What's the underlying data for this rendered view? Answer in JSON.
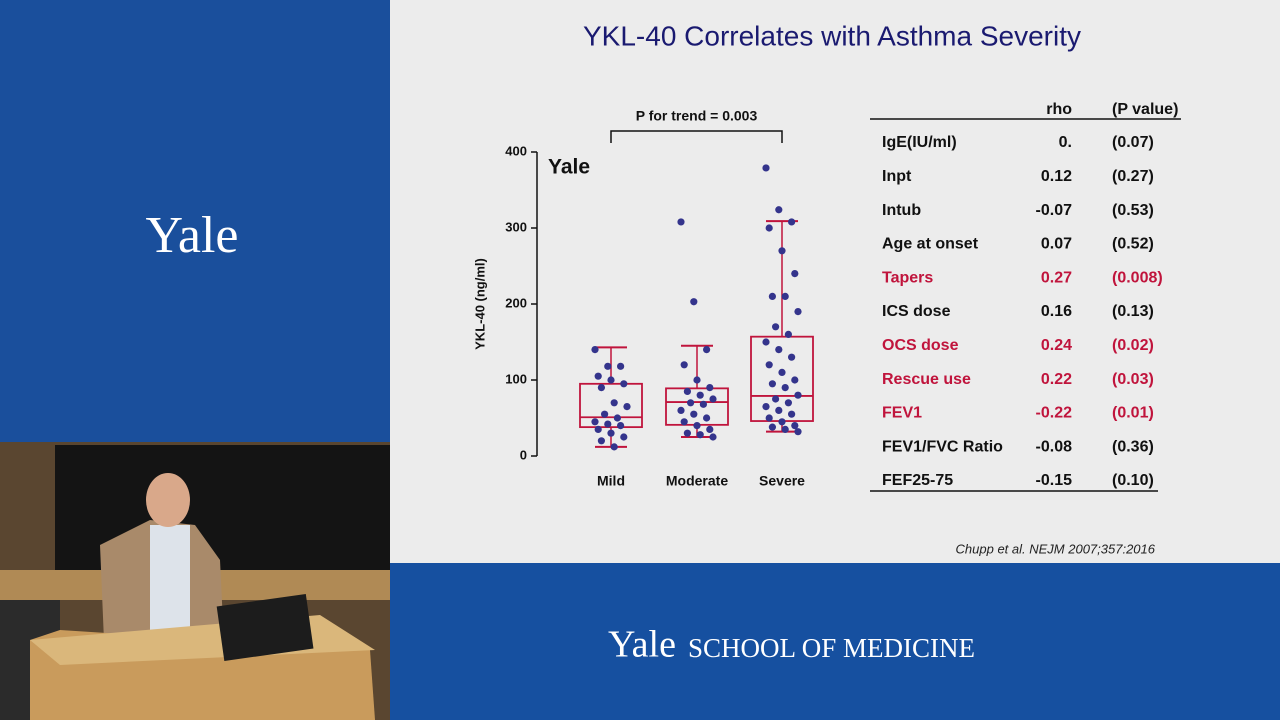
{
  "sidebar": {
    "logo": "Yale"
  },
  "banner": {
    "logo": "Yale",
    "school": "SCHOOL OF MEDICINE"
  },
  "slide": {
    "title": "YKL-40 Correlates with Asthma Severity",
    "citation": "Chupp et al.  NEJM 2007;357:2016"
  },
  "chart_data": {
    "type": "box",
    "ylabel": "YKL-40 (ng/ml)",
    "annotation": "P for trend = 0.003",
    "inset_label": "Yale",
    "categories": [
      "Mild",
      "Moderate",
      "Severe"
    ],
    "boxes": [
      {
        "min": 12,
        "q1": 38,
        "median": 51,
        "q3": 95,
        "max": 143
      },
      {
        "min": 25,
        "q1": 41,
        "median": 71,
        "q3": 89,
        "max": 145
      },
      {
        "min": 32,
        "q1": 46,
        "median": 79,
        "q3": 157,
        "max": 309
      }
    ],
    "points": [
      [
        140,
        118,
        118,
        105,
        100,
        95,
        90,
        70,
        65,
        55,
        50,
        45,
        42,
        40,
        35,
        30,
        25,
        20,
        12
      ],
      [
        308,
        203,
        140,
        120,
        100,
        90,
        85,
        80,
        75,
        70,
        68,
        60,
        55,
        50,
        45,
        40,
        35,
        30,
        28,
        25
      ],
      [
        379,
        324,
        308,
        300,
        270,
        240,
        210,
        210,
        190,
        170,
        160,
        150,
        140,
        130,
        120,
        110,
        100,
        95,
        90,
        80,
        75,
        70,
        65,
        60,
        55,
        50,
        45,
        40,
        38,
        35,
        32
      ]
    ],
    "box_color": "#c0143c",
    "point_color": "#34348c",
    "ylim": [
      0,
      400
    ],
    "yticks": [
      0,
      100,
      200,
      300,
      400
    ]
  },
  "table": {
    "columns": [
      "rho",
      "(P value)"
    ],
    "rows": [
      {
        "label": "IgE(IU/ml)",
        "rho": "0.",
        "p": "(0.07)",
        "highlight": false
      },
      {
        "label": "Inpt",
        "rho": "0.12",
        "p": "(0.27)",
        "highlight": false
      },
      {
        "label": "Intub",
        "rho": "-0.07",
        "p": "(0.53)",
        "highlight": false
      },
      {
        "label": "Age at onset",
        "rho": "0.07",
        "p": "(0.52)",
        "highlight": false
      },
      {
        "label": "Tapers",
        "rho": "0.27",
        "p": "(0.008)",
        "highlight": true
      },
      {
        "label": "ICS dose",
        "rho": "0.16",
        "p": "(0.13)",
        "highlight": false
      },
      {
        "label": "OCS dose",
        "rho": "0.24",
        "p": "(0.02)",
        "highlight": true
      },
      {
        "label": "Rescue use",
        "rho": "0.22",
        "p": "(0.03)",
        "highlight": true
      },
      {
        "label": "FEV1",
        "rho": "-0.22",
        "p": "(0.01)",
        "highlight": true
      },
      {
        "label": "FEV1/FVC Ratio",
        "rho": "-0.08",
        "p": "(0.36)",
        "highlight": false
      },
      {
        "label": "FEF25-75",
        "rho": "-0.15",
        "p": "(0.10)",
        "highlight": false
      }
    ],
    "highlight_color": "#c0143c"
  }
}
